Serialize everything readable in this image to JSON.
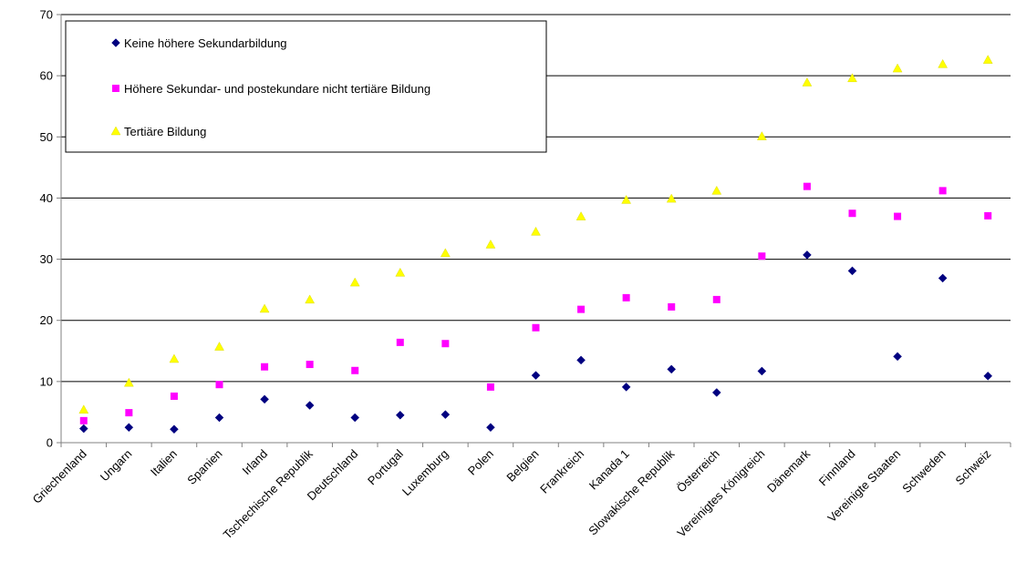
{
  "chart_data": {
    "type": "scatter",
    "title": "",
    "xlabel": "",
    "ylabel": "",
    "ylim": [
      0,
      70
    ],
    "y_ticks": [
      0,
      10,
      20,
      30,
      40,
      50,
      60,
      70
    ],
    "grid": "horizontal",
    "legend_position": "top-left",
    "categories": [
      "Griechenland",
      "Ungarn",
      "Italien",
      "Spanien",
      "Irland",
      "Tschechische Republik",
      "Deutschland",
      "Portugal",
      "Luxemburg",
      "Polen",
      "Belgien",
      "Frankreich",
      "Kanada 1",
      "Slowakische Republik",
      "Österreich",
      "Vereinigtes Königreich",
      "Dänemark",
      "Finnland",
      "Vereinigte Staaten",
      "Schweden",
      "Schweiz"
    ],
    "series": [
      {
        "name": "Keine höhere Sekundarbildung",
        "marker": "diamond",
        "color": "#000080",
        "values": [
          2.3,
          2.5,
          2.2,
          4.1,
          7.1,
          6.1,
          4.1,
          4.5,
          4.6,
          2.5,
          11.0,
          13.5,
          9.1,
          12.0,
          8.2,
          11.7,
          30.7,
          28.1,
          14.1,
          26.9,
          10.9
        ]
      },
      {
        "name": "Höhere Sekundar- und postekundare nicht tertiäre Bildung",
        "marker": "square",
        "color": "#FF00FF",
        "values": [
          3.6,
          4.9,
          7.6,
          9.5,
          12.4,
          12.8,
          11.8,
          16.4,
          16.2,
          9.1,
          18.8,
          21.8,
          23.7,
          22.2,
          23.4,
          30.5,
          41.9,
          37.5,
          37.0,
          41.2,
          37.1
        ]
      },
      {
        "name": "Tertiäre Bildung",
        "marker": "triangle",
        "color": "#FFFF00",
        "values": [
          5.4,
          9.8,
          13.7,
          15.7,
          21.9,
          23.4,
          26.2,
          27.8,
          31.0,
          32.4,
          34.5,
          37.0,
          39.7,
          39.9,
          41.2,
          50.1,
          58.9,
          59.6,
          61.2,
          61.9,
          62.6
        ]
      }
    ]
  },
  "colors": {
    "grid": "#000000",
    "axis": "#808080",
    "background": "#ffffff"
  }
}
